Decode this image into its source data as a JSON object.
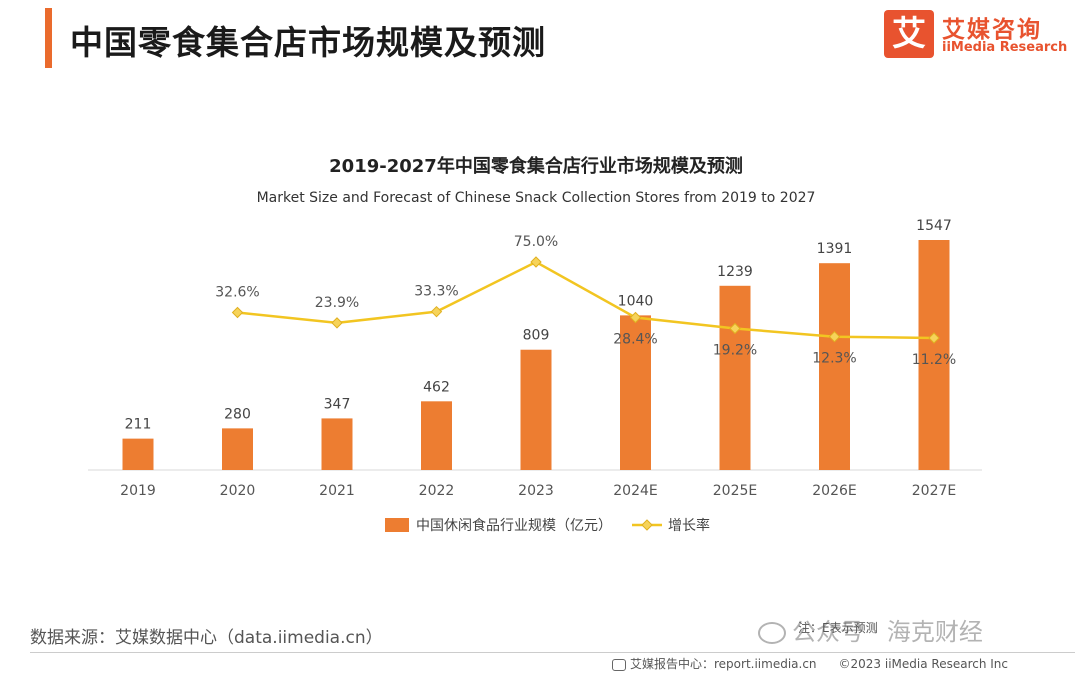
{
  "header": {
    "page_title": "中国零食集合店市场规模及预测",
    "logo_box_char": "艾",
    "logo_cn": "艾媒咨询",
    "logo_en": "iiMedia Research"
  },
  "chart_data": {
    "type": "bar",
    "title": "2019-2027年中国零食集合店行业市场规模及预测",
    "subtitle": "Market Size and Forecast of Chinese Snack Collection Stores from 2019 to 2027",
    "categories": [
      "2019",
      "2020",
      "2021",
      "2022",
      "2023",
      "2024E",
      "2025E",
      "2026E",
      "2027E"
    ],
    "series": [
      {
        "name": "中国休闲食品行业规模（亿元）",
        "type": "bar",
        "color": "#ed7d31",
        "values": [
          211,
          280,
          347,
          462,
          809,
          1040,
          1239,
          1391,
          1547
        ],
        "labels": [
          "211",
          "280",
          "347",
          "462",
          "809",
          "1040",
          "1239",
          "1391",
          "1547"
        ]
      },
      {
        "name": "增长率",
        "type": "line",
        "color": "#f2c521",
        "values": [
          null,
          32.6,
          23.9,
          33.3,
          75.0,
          28.4,
          19.2,
          12.3,
          11.2
        ],
        "labels": [
          "",
          "32.6%",
          "23.9%",
          "33.3%",
          "75.0%",
          "28.4%",
          "19.2%",
          "12.3%",
          "11.2%"
        ]
      }
    ],
    "legend": "bottom",
    "grid": false
  },
  "footer": {
    "source": "数据来源：艾媒数据中心（data.iimedia.cn）",
    "note": "注：E表示预测",
    "watermark": "公众号 · 海克财经",
    "report_center": "艾媒报告中心：report.iimedia.cn",
    "copyright": "©2023  iiMedia Research  Inc"
  }
}
